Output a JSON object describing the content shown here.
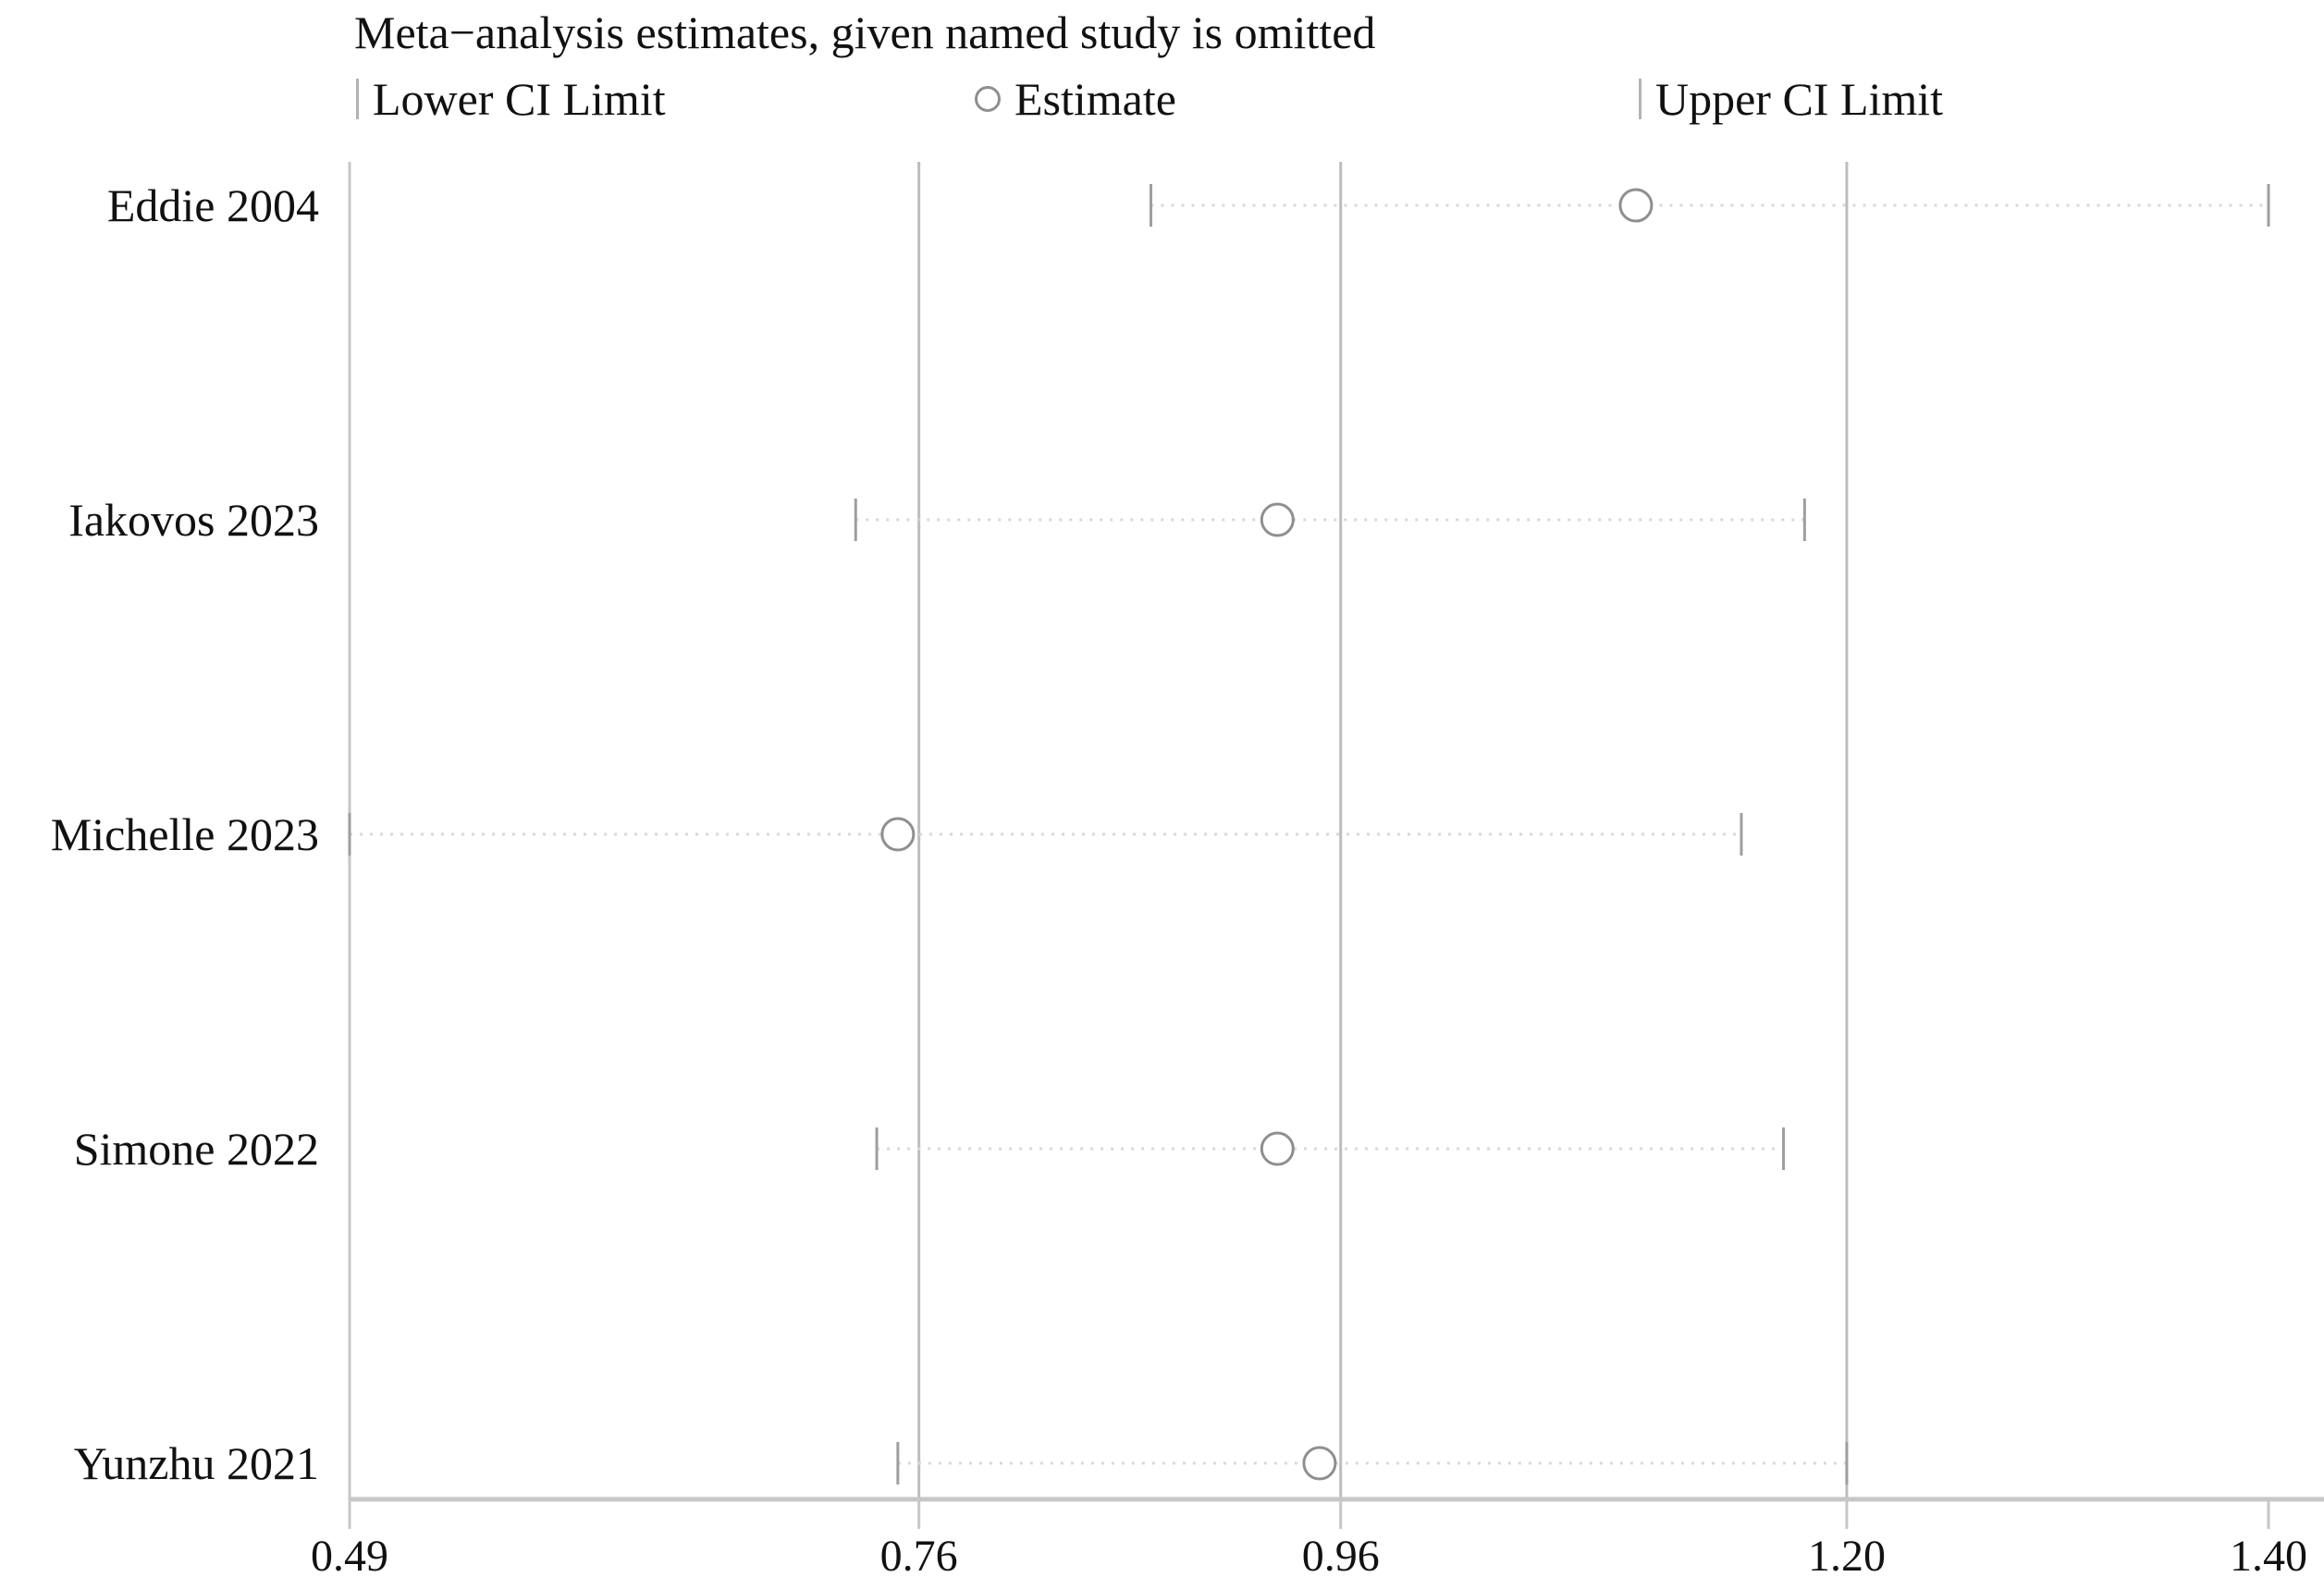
{
  "title": "Meta−analysis estimates, given named study is omitted",
  "legend": {
    "lower_label": "Lower CI Limit",
    "estimate_label": "Estimate",
    "upper_label": "Upper CI Limit"
  },
  "chart_data": {
    "type": "scatter",
    "subtype": "leave-one-out-meta-analysis-influence-plot",
    "title": "Meta−analysis estimates, given named study is omitted",
    "categories": [
      "Eddie 2004",
      "Iakovos 2023",
      "Michelle 2023",
      "Simone 2022",
      "Yunzhu 2021"
    ],
    "series": [
      {
        "name": "Lower CI Limit",
        "marker": "vertical-tick",
        "values": [
          0.87,
          0.73,
          0.49,
          0.74,
          0.75
        ]
      },
      {
        "name": "Estimate",
        "marker": "open-circle",
        "values": [
          1.1,
          0.93,
          0.75,
          0.93,
          0.95
        ]
      },
      {
        "name": "Upper CI Limit",
        "marker": "vertical-tick",
        "values": [
          1.4,
          1.18,
          1.15,
          1.17,
          1.2
        ]
      }
    ],
    "xlim": [
      0.49,
      1.4
    ],
    "x_ticks": [
      0.49,
      0.76,
      0.96,
      1.2,
      1.4
    ],
    "x_tick_labels": [
      "0.49",
      "0.76",
      "0.96",
      "1.20",
      "1.40"
    ],
    "gridlines_at": [
      0.76,
      0.96,
      1.2
    ],
    "grid": true,
    "legend_position": "top",
    "ci_line_style": "dotted",
    "colors": {
      "text": "#111111",
      "frame": "#c7c7c7",
      "gridline": "#bdbdbd",
      "ci_tick": "#9e9e9e",
      "marker_stroke": "#8f8f8f",
      "dotted_line": "#d8d8d8"
    }
  }
}
